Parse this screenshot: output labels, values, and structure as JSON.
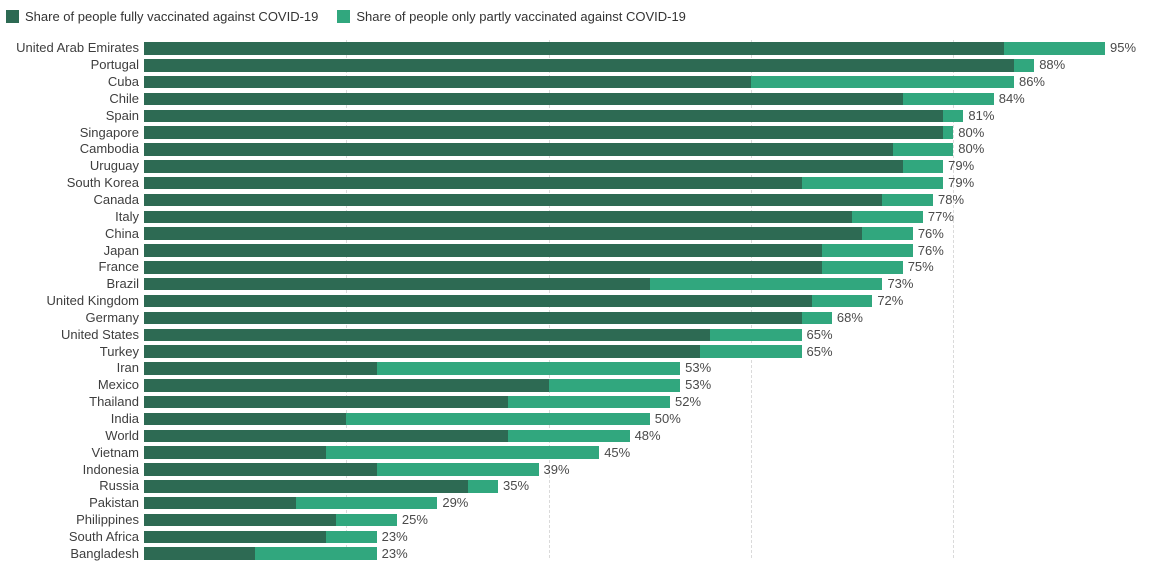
{
  "legend": {
    "items": [
      {
        "label": "Share of people fully vaccinated against COVID-19",
        "color": "#2d6a53"
      },
      {
        "label": "Share of people only partly vaccinated against COVID-19",
        "color": "#31a77e"
      }
    ]
  },
  "colors": {
    "fully": "#2d6a53",
    "partly": "#31a77e",
    "gridline": "#dadada",
    "label_text": "#3e3e3e",
    "value_text": "#4a4a4a"
  },
  "chart_data": {
    "type": "bar",
    "orientation": "horizontal",
    "stacked": true,
    "value_unit": "%",
    "axis_range": [
      0,
      100
    ],
    "gridlines": [
      20,
      40,
      60,
      80
    ],
    "grid_style": "vertical dashed light-gray lines behind bars",
    "legend_position": "top-left",
    "title": "",
    "categories": [
      "United Arab Emirates",
      "Portugal",
      "Cuba",
      "Chile",
      "Spain",
      "Singapore",
      "Cambodia",
      "Uruguay",
      "South Korea",
      "Canada",
      "Italy",
      "China",
      "Japan",
      "France",
      "Brazil",
      "United Kingdom",
      "Germany",
      "United States",
      "Turkey",
      "Iran",
      "Mexico",
      "Thailand",
      "India",
      "World",
      "Vietnam",
      "Indonesia",
      "Russia",
      "Pakistan",
      "Philippines",
      "South Africa",
      "Bangladesh"
    ],
    "series": [
      {
        "name": "Share of people fully vaccinated against COVID-19",
        "color": "#2d6a53",
        "values": [
          85,
          86,
          60,
          75,
          79,
          79,
          74,
          75,
          65,
          73,
          70,
          71,
          67,
          67,
          50,
          66,
          65,
          56,
          55,
          23,
          40,
          36,
          20,
          36,
          18,
          23,
          32,
          15,
          19,
          18,
          11
        ]
      },
      {
        "name": "Share of people only partly vaccinated against COVID-19",
        "color": "#31a77e",
        "values": [
          10,
          2,
          26,
          9,
          2,
          1,
          6,
          4,
          14,
          5,
          7,
          5,
          9,
          8,
          23,
          6,
          3,
          9,
          10,
          30,
          13,
          16,
          30,
          12,
          27,
          16,
          3,
          14,
          6,
          5,
          12
        ]
      }
    ],
    "totals": [
      95,
      88,
      86,
      84,
      81,
      80,
      80,
      79,
      79,
      78,
      77,
      76,
      76,
      75,
      73,
      72,
      68,
      65,
      65,
      53,
      53,
      52,
      50,
      48,
      45,
      39,
      35,
      29,
      25,
      23,
      23
    ],
    "total_labels": [
      "95%",
      "88%",
      "86%",
      "84%",
      "81%",
      "80%",
      "80%",
      "79%",
      "79%",
      "78%",
      "77%",
      "76%",
      "76%",
      "75%",
      "73%",
      "72%",
      "68%",
      "65%",
      "65%",
      "53%",
      "53%",
      "52%",
      "50%",
      "48%",
      "45%",
      "39%",
      "35%",
      "29%",
      "25%",
      "23%",
      "23%"
    ]
  }
}
